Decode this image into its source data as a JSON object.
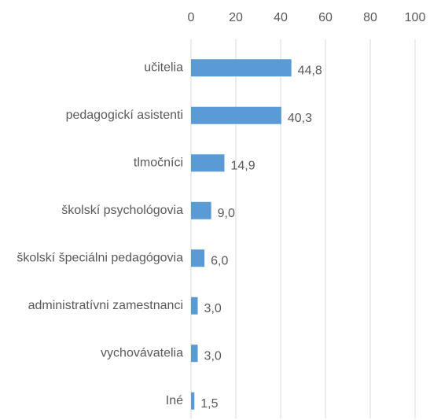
{
  "chart_data": {
    "type": "bar",
    "orientation": "horizontal",
    "categories": [
      "učitelia",
      "pedagogickí asistenti",
      "tlmočníci",
      "školskí psychológovia",
      "školskí špeciálni pedagógovia",
      "administratívni zamestnanci",
      "vychovávatelia",
      "Iné"
    ],
    "values": [
      44.8,
      40.3,
      14.9,
      9.0,
      6.0,
      3.0,
      3.0,
      1.5
    ],
    "value_labels": [
      "44,8",
      "40,3",
      "14,9",
      "9,0",
      "6,0",
      "3,0",
      "3,0",
      "1,5"
    ],
    "color": "#5b9bd5",
    "xlim": [
      0,
      100
    ],
    "xticks": [
      0,
      20,
      40,
      60,
      80,
      100
    ],
    "grid": true
  }
}
